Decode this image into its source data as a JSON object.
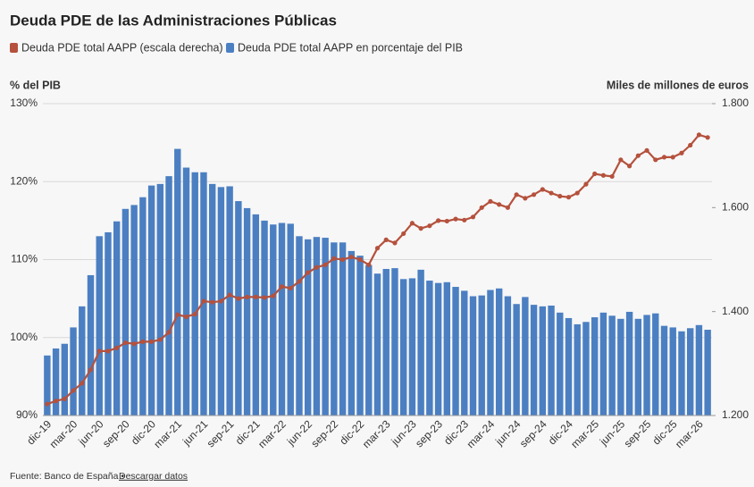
{
  "chart_data": {
    "type": "bar-line",
    "title": "Deuda PDE de las Administraciones Públicas",
    "y_label": "% del PIB",
    "y2_label": "Miles de millones de euros",
    "source": "Fuente: Banco de España •",
    "link": "Descargar datos",
    "categories": [
      "dic-19",
      null,
      null,
      "mar-20",
      null,
      null,
      "jun-20",
      null,
      null,
      "sep-20",
      null,
      null,
      "dic-20",
      null,
      null,
      "mar-21",
      null,
      null,
      "jun-21",
      null,
      null,
      "sep-21",
      null,
      null,
      "dic-21",
      null,
      null,
      "mar-22",
      null,
      null,
      "jun-22",
      null,
      null,
      "sep-22",
      null,
      null,
      "dic-22",
      null,
      null,
      "mar-23",
      null,
      null,
      "jun-23",
      null,
      null,
      "sep-23",
      null,
      null,
      "dic-23",
      null,
      null,
      "mar-24",
      null,
      null,
      "jun-24",
      null,
      null,
      "sep-24",
      null,
      null,
      "dic-24",
      null,
      null,
      "mar-25",
      null,
      null,
      "jun-25",
      null,
      null,
      "sep-25",
      null,
      null,
      "dic-25",
      null,
      null,
      "mar-26",
      null
    ],
    "series": [
      {
        "name": "Deuda PDE total AAPP en porcentaje del PIB",
        "type": "bar",
        "color": "#4b7fc2",
        "values": [
          97.7,
          98.6,
          99.2,
          101.3,
          104.0,
          108.0,
          113.0,
          113.5,
          114.9,
          116.5,
          117.0,
          118.0,
          119.5,
          119.7,
          120.7,
          124.2,
          121.8,
          121.2,
          121.2,
          119.7,
          119.3,
          119.4,
          117.5,
          116.6,
          115.8,
          115.0,
          114.5,
          114.7,
          114.6,
          113.0,
          112.6,
          112.9,
          112.8,
          112.2,
          112.2,
          111.1,
          110.5,
          109.3,
          108.2,
          108.8,
          108.9,
          107.5,
          107.6,
          108.7,
          107.3,
          107.0,
          107.1,
          106.5,
          106.0,
          105.3,
          105.4,
          106.1,
          106.3,
          105.3,
          104.3,
          105.2,
          104.2,
          104.0,
          104.1,
          103.2,
          102.5,
          101.7,
          102.0,
          102.6,
          103.2,
          102.8,
          102.4,
          103.3,
          102.4,
          102.9,
          103.1,
          101.5,
          101.3,
          100.8,
          101.2,
          101.6,
          101.0
        ]
      },
      {
        "name": "Deuda PDE total AAPP (escala derecha)",
        "type": "line",
        "axis": "y2",
        "color": "#b5513d",
        "values": [
          1222,
          1228,
          1232,
          1248,
          1262,
          1288,
          1324,
          1324,
          1330,
          1340,
          1338,
          1342,
          1342,
          1346,
          1360,
          1394,
          1390,
          1395,
          1420,
          1418,
          1420,
          1432,
          1425,
          1428,
          1428,
          1427,
          1430,
          1448,
          1445,
          1458,
          1475,
          1485,
          1490,
          1502,
          1500,
          1505,
          1500,
          1490,
          1522,
          1538,
          1532,
          1550,
          1570,
          1560,
          1565,
          1575,
          1574,
          1578,
          1576,
          1582,
          1600,
          1612,
          1606,
          1600,
          1625,
          1618,
          1625,
          1635,
          1628,
          1622,
          1620,
          1628,
          1645,
          1665,
          1662,
          1660,
          1692,
          1680,
          1700,
          1710,
          1692,
          1697,
          1697,
          1705,
          1720,
          1740,
          1735
        ]
      }
    ],
    "ylim": [
      90,
      130
    ],
    "yticks": [
      {
        "value": 90,
        "label": "90%"
      },
      {
        "value": 100,
        "label": "100%"
      },
      {
        "value": 110,
        "label": "110%"
      },
      {
        "value": 120,
        "label": "120%"
      },
      {
        "value": 130,
        "label": "130%"
      }
    ],
    "y2lim": [
      1200,
      1800
    ],
    "y2ticks": [
      {
        "value": 1200,
        "label": "1.200"
      },
      {
        "value": 1400,
        "label": "1.400"
      },
      {
        "value": 1600,
        "label": "1.600"
      },
      {
        "value": 1800,
        "label": "1.800"
      }
    ],
    "grid": true
  }
}
